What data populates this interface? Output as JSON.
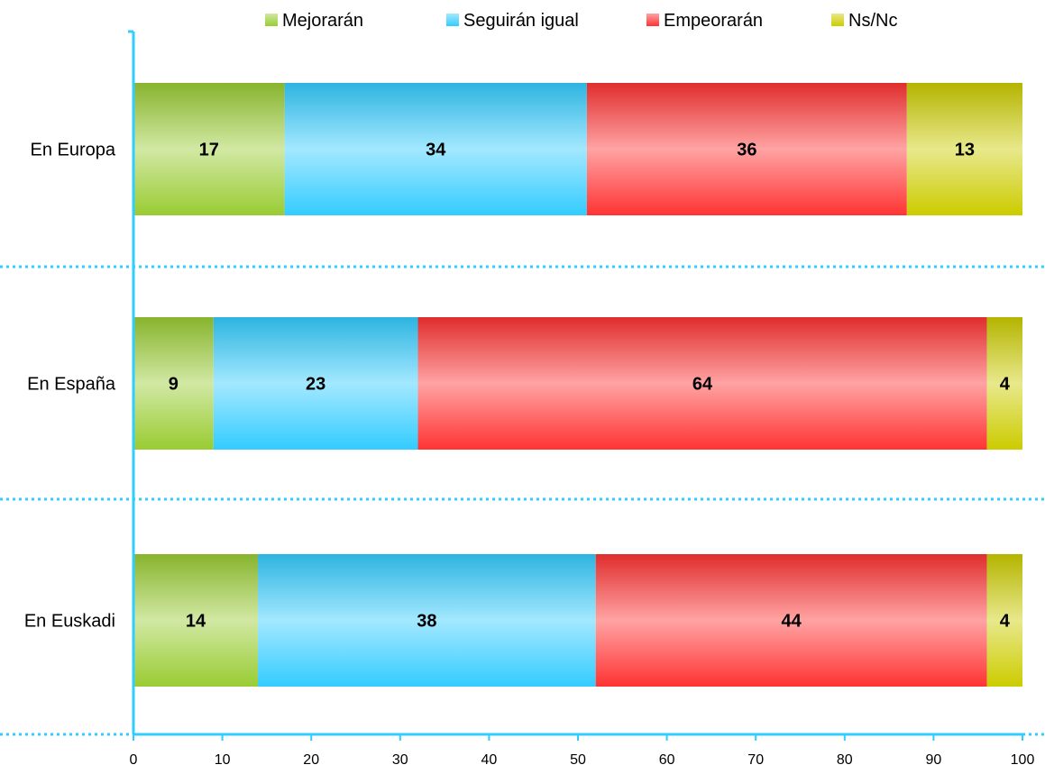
{
  "chart_data": {
    "type": "bar",
    "orientation": "horizontal",
    "stacked": true,
    "categories": [
      "En Europa",
      "En España",
      "En Euskadi"
    ],
    "series": [
      {
        "name": "Mejorarán",
        "values": [
          17,
          9,
          14
        ],
        "color": "#99cc33"
      },
      {
        "name": "Seguirán igual",
        "values": [
          34,
          23,
          38
        ],
        "color": "#33ccff"
      },
      {
        "name": "Empeorarán",
        "values": [
          36,
          64,
          44
        ],
        "color": "#ff3333"
      },
      {
        "name": "Ns/Nc",
        "values": [
          13,
          4,
          4
        ],
        "color": "#cccc00"
      }
    ],
    "xlim": [
      0,
      100
    ],
    "xticks": [
      0,
      10,
      20,
      30,
      40,
      50,
      60,
      70,
      80,
      90,
      100
    ],
    "title": "",
    "xlabel": "",
    "ylabel": "",
    "grid": false,
    "legend_position": "top",
    "axis_color": "#33ccff"
  }
}
